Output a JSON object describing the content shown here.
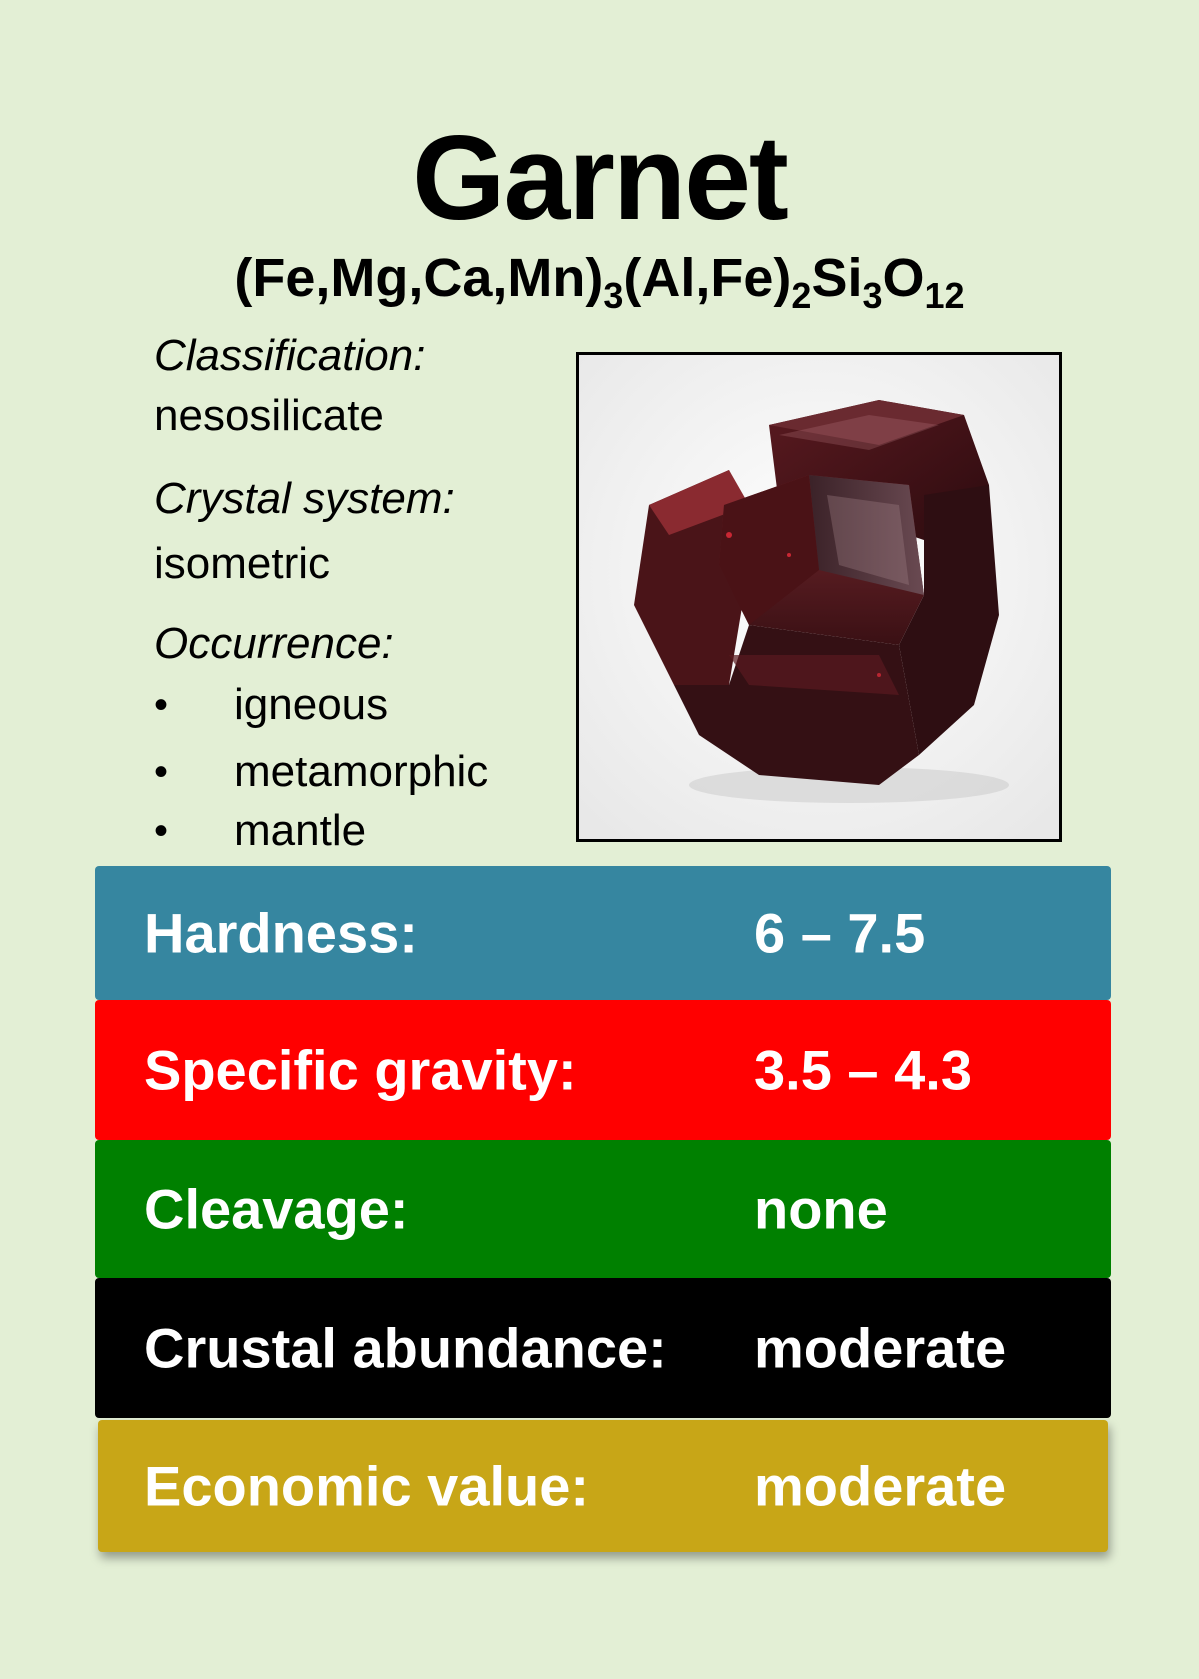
{
  "card": {
    "title": "Garnet",
    "formula": {
      "p1": "(Fe,Mg,Ca,Mn)",
      "s1": "3",
      "p2": "(Al,Fe)",
      "s2": "2",
      "p3": "Si",
      "s3": "3",
      "p4": "O",
      "s4": "12"
    },
    "classification": {
      "label": "Classification:",
      "value": "nesosilicate"
    },
    "crystal_system": {
      "label": "Crystal system:",
      "value": "isometric"
    },
    "occurrence": {
      "label": "Occurrence:",
      "bullet": "•",
      "items": [
        "igneous",
        "metamorphic",
        "mantle"
      ]
    },
    "photo": {
      "subject": "garnet crystal"
    }
  },
  "properties": [
    {
      "label": "Hardness:",
      "value": "6 – 7.5",
      "color": "#3686a0"
    },
    {
      "label": "Specific gravity:",
      "value": "3.5 – 4.3",
      "color": "#ff0000"
    },
    {
      "label": "Cleavage:",
      "value": "none",
      "color": "#008000"
    },
    {
      "label": "Crustal abundance:",
      "value": "moderate",
      "color": "#000000"
    },
    {
      "label": "Economic value:",
      "value": "moderate",
      "color": "#c8a617"
    }
  ]
}
